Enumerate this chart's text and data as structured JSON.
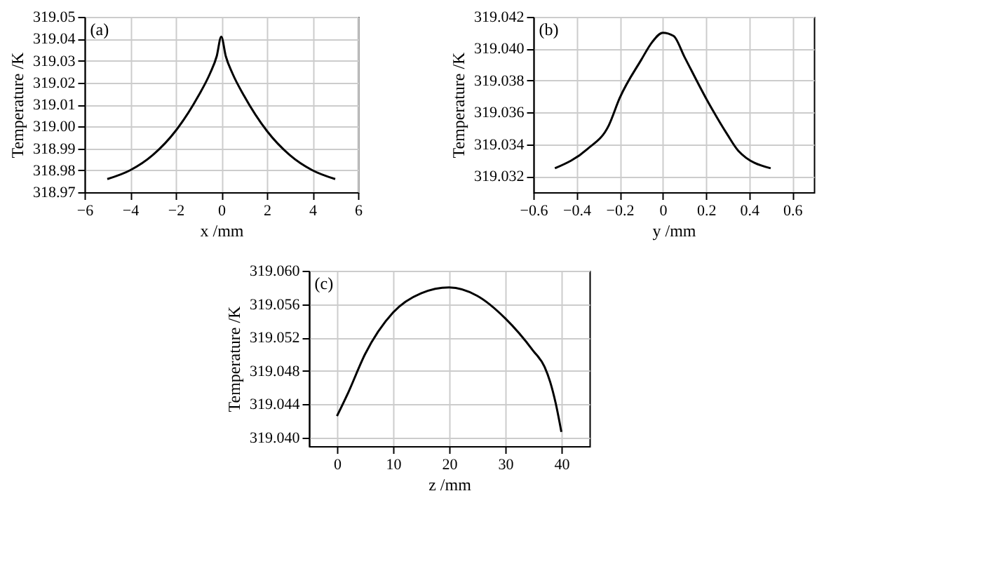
{
  "chart_data": [
    {
      "type": "line",
      "title": "(a)",
      "xlabel": "x /mm",
      "ylabel": "Temperature /K",
      "color": "#000000",
      "grid": true,
      "x": [
        -5,
        -4,
        -3,
        -2,
        -1,
        -0.5,
        -0.2,
        0,
        0.2,
        0.5,
        1,
        2,
        3,
        4,
        5
      ],
      "values": [
        318.976,
        318.98,
        318.987,
        318.998,
        319.014,
        319.024,
        319.032,
        319.041,
        319.032,
        319.024,
        319.014,
        318.998,
        318.987,
        318.98,
        318.976
      ],
      "xlim": [
        -6,
        6
      ],
      "xticks": [
        -6,
        -4,
        -2,
        0,
        2,
        4,
        6
      ],
      "ylim": [
        318.97,
        319.05
      ],
      "yticks": [
        318.97,
        318.98,
        318.99,
        {
          "value": 319.0,
          "label": "319.00"
        },
        319.01,
        319.02,
        319.03,
        319.04,
        319.05
      ]
    },
    {
      "type": "line",
      "title": "(b)",
      "xlabel": "y /mm",
      "ylabel": "Temperature /K",
      "color": "#000000",
      "grid": true,
      "x": [
        -0.5,
        -0.35,
        -0.25,
        -0.2,
        -0.1,
        -0.05,
        0,
        0.05,
        0.1,
        0.2,
        0.3,
        0.35,
        0.5
      ],
      "values": [
        319.0325,
        319.0337,
        319.0352,
        319.0369,
        319.0393,
        319.0404,
        319.041,
        319.0408,
        319.0395,
        319.0369,
        319.0346,
        319.0336,
        319.0325
      ],
      "xlim": [
        -0.6,
        0.7
      ],
      "xticks": [
        -0.6,
        -0.4,
        -0.2,
        {
          "value": 0,
          "label": "0"
        },
        0.2,
        0.4,
        0.6
      ],
      "ylim": [
        319.031,
        319.042
      ],
      "yticks": [
        {
          "value": 319.032,
          "label": "319.032"
        },
        {
          "value": 319.034,
          "label": "319.034"
        },
        {
          "value": 319.036,
          "label": "319.036"
        },
        {
          "value": 319.038,
          "label": "319.038"
        },
        {
          "value": 319.04,
          "label": "319.040"
        },
        {
          "value": 319.042,
          "label": "319.042"
        }
      ]
    },
    {
      "type": "line",
      "title": "(c)",
      "xlabel": "z /mm",
      "ylabel": "Temperature /K",
      "color": "#000000",
      "grid": true,
      "x": [
        0,
        2,
        5,
        10,
        15,
        20,
        25,
        30,
        35,
        37,
        38,
        39,
        40
      ],
      "values": [
        319.0426,
        319.0454,
        319.05,
        319.055,
        319.0573,
        319.058,
        319.057,
        319.0543,
        319.0504,
        319.0485,
        319.0467,
        319.0441,
        319.0407
      ],
      "xlim": [
        -5,
        45
      ],
      "xticks": [
        0,
        10,
        20,
        30,
        40
      ],
      "ylim": [
        319.039,
        319.06
      ],
      "yticks": [
        {
          "value": 319.04,
          "label": "319.040"
        },
        {
          "value": 319.044,
          "label": "319.044"
        },
        {
          "value": 319.048,
          "label": "319.048"
        },
        {
          "value": 319.052,
          "label": "319.052"
        },
        {
          "value": 319.056,
          "label": "319.056"
        },
        {
          "value": 319.06,
          "label": "319.060"
        }
      ]
    }
  ]
}
